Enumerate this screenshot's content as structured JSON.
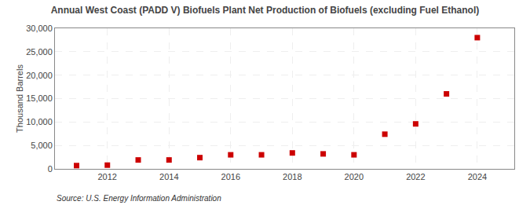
{
  "chart_data": {
    "type": "scatter",
    "title": "Annual West Coast (PADD V) Biofuels Plant Net Production of Biofuels (excluding Fuel Ethanol)",
    "y_label": "Thousand Barrels",
    "annotations": [
      "Source: U.S. Energy Information Administration"
    ],
    "x": [
      2011,
      2012,
      2013,
      2014,
      2015,
      2016,
      2017,
      2018,
      2019,
      2020,
      2021,
      2022,
      2023,
      2024
    ],
    "values": [
      700,
      800,
      1900,
      1900,
      2400,
      3000,
      3000,
      3400,
      3200,
      3000,
      7400,
      9600,
      16000,
      28000
    ],
    "color": "#cc0000",
    "marker": "square",
    "xlim": [
      2010.3,
      2025.2
    ],
    "ylim": [
      0,
      30000
    ],
    "xticks": [
      2012,
      2014,
      2016,
      2018,
      2020,
      2022,
      2024
    ],
    "yticks": [
      0,
      {
        "value": 5000,
        "label": "5,000"
      },
      {
        "value": 10000,
        "label": "10,000"
      },
      {
        "value": 15000,
        "label": "15,000"
      },
      {
        "value": 20000,
        "label": "20,000"
      },
      {
        "value": 25000,
        "label": "25,000"
      },
      {
        "value": 30000,
        "label": "30,000"
      }
    ],
    "grid": true
  }
}
